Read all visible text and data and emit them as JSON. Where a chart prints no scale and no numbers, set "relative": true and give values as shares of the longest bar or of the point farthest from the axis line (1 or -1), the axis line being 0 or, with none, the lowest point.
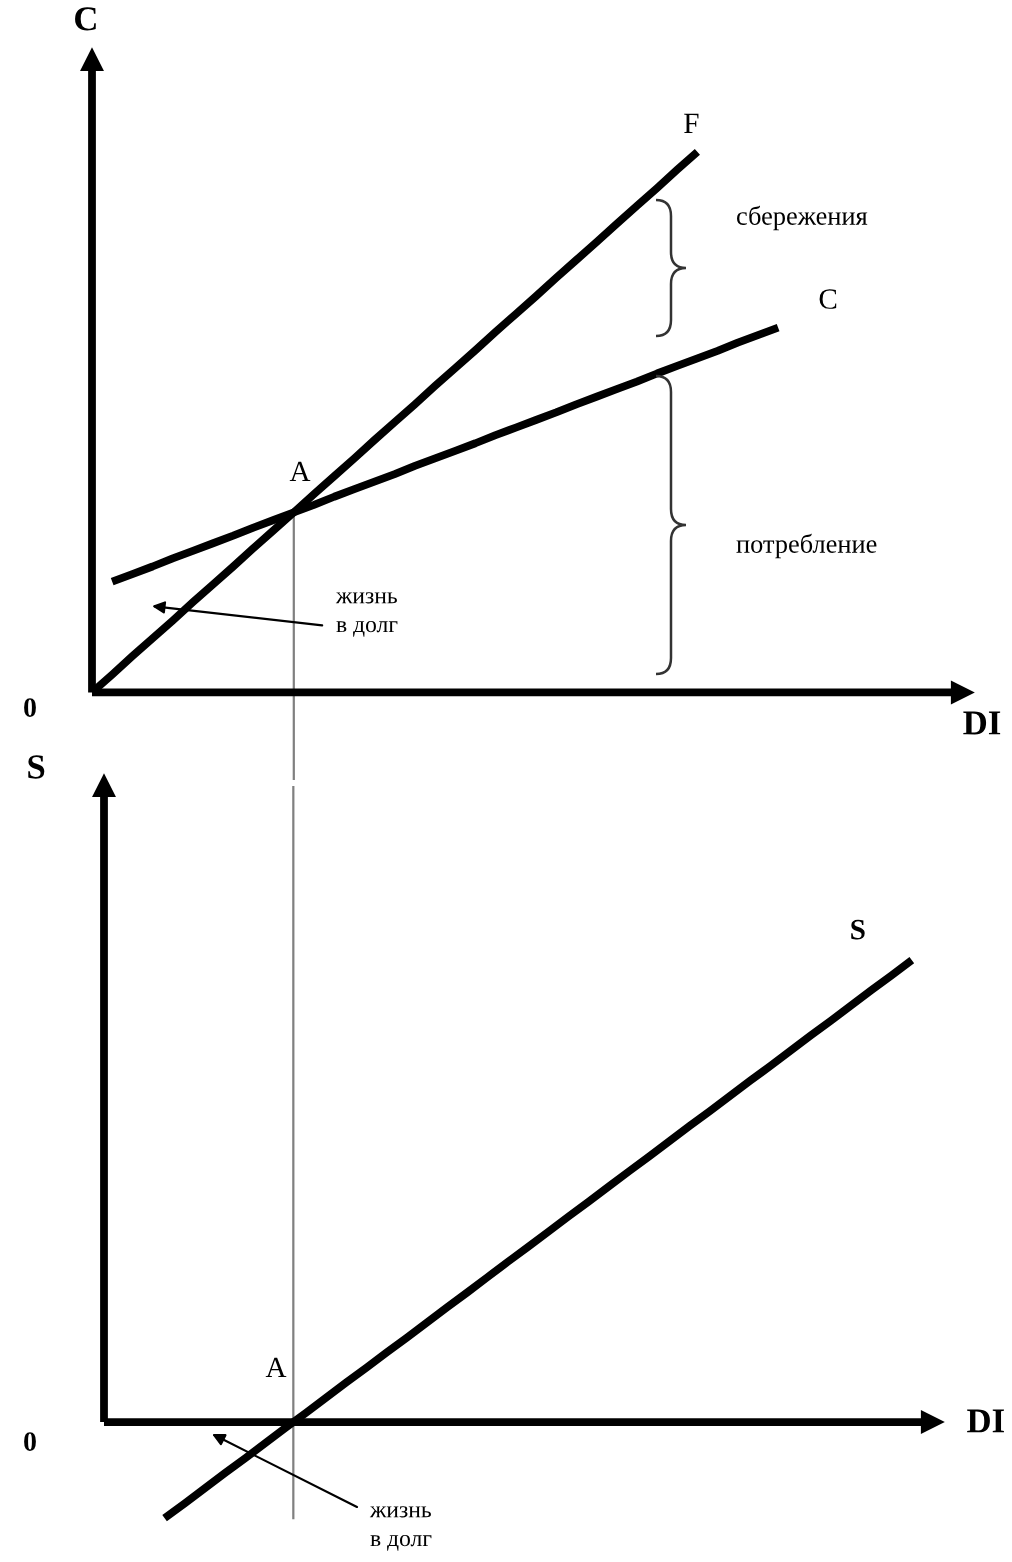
{
  "chart_data": [
    {
      "type": "line",
      "xlabel": "DI",
      "ylabel": "C",
      "relative": true,
      "line_style": "solid",
      "categories": [
        null,
        null,
        null,
        null,
        null,
        null,
        null,
        null,
        null,
        null,
        null,
        null,
        null,
        null,
        null,
        null,
        null,
        null,
        null,
        null,
        null,
        null,
        null,
        null,
        null,
        null,
        null,
        null,
        null,
        null,
        null,
        null,
        null,
        null,
        null
      ],
      "series": [
        {
          "name": "F",
          "color": "#000000",
          "values": [
            0,
            0.033,
            0.067,
            0.1,
            0.133,
            0.167,
            0.2,
            0.233,
            0.267,
            0.3,
            0.333,
            0.367,
            0.4,
            0.433,
            0.467,
            0.5,
            0.533,
            0.567,
            0.6,
            0.633,
            0.667,
            0.7,
            0.733,
            0.767,
            0.8,
            0.833,
            0.867,
            0.9,
            0.933,
            0.967,
            1,
            null,
            null,
            null,
            null
          ]
        },
        {
          "name": "C",
          "color": "#000000",
          "values": [
            null,
            0.205,
            0.219,
            0.233,
            0.248,
            0.262,
            0.276,
            0.29,
            0.305,
            0.319,
            0.333,
            0.347,
            0.362,
            0.376,
            0.39,
            0.404,
            0.419,
            0.433,
            0.447,
            0.461,
            0.476,
            0.49,
            0.504,
            0.518,
            0.533,
            0.547,
            0.561,
            0.575,
            0.59,
            0.604,
            0.618,
            0.632,
            0.647,
            0.661,
            0.675
          ]
        }
      ],
      "annotations": [
        "A",
        "0",
        "жизнь\nв долг",
        "сбережения",
        "потребление"
      ],
      "ref_lines": [
        {
          "axis": "x",
          "color": "#808080"
        }
      ]
    },
    {
      "type": "line",
      "xlabel": "DI",
      "ylabel": "S",
      "relative": true,
      "line_style": "solid",
      "categories": [
        null,
        null,
        null,
        null,
        null,
        null,
        null,
        null,
        null,
        null,
        null,
        null,
        null,
        null,
        null,
        null,
        null,
        null,
        null,
        null,
        null,
        null,
        null,
        null,
        null,
        null,
        null,
        null,
        null,
        null,
        null,
        null,
        null,
        null,
        null,
        null,
        null,
        null,
        null,
        null,
        null
      ],
      "series": [
        {
          "name": "S",
          "color": "#000000",
          "values": [
            null,
            null,
            null,
            -0.208,
            -0.176,
            -0.143,
            -0.11,
            -0.078,
            -0.045,
            -0.012,
            0.02,
            0.053,
            0.086,
            0.118,
            0.151,
            0.183,
            0.216,
            0.249,
            0.281,
            0.314,
            0.347,
            0.379,
            0.412,
            0.445,
            0.477,
            0.51,
            0.543,
            0.575,
            0.608,
            0.641,
            0.673,
            0.706,
            0.739,
            0.771,
            0.804,
            0.837,
            0.869,
            0.902,
            0.935,
            0.967,
            1
          ]
        }
      ],
      "annotations": [
        "A",
        "0",
        "жизнь\nв долг"
      ],
      "ref_lines": [
        {
          "axis": "x",
          "color": "#808080"
        }
      ]
    }
  ]
}
